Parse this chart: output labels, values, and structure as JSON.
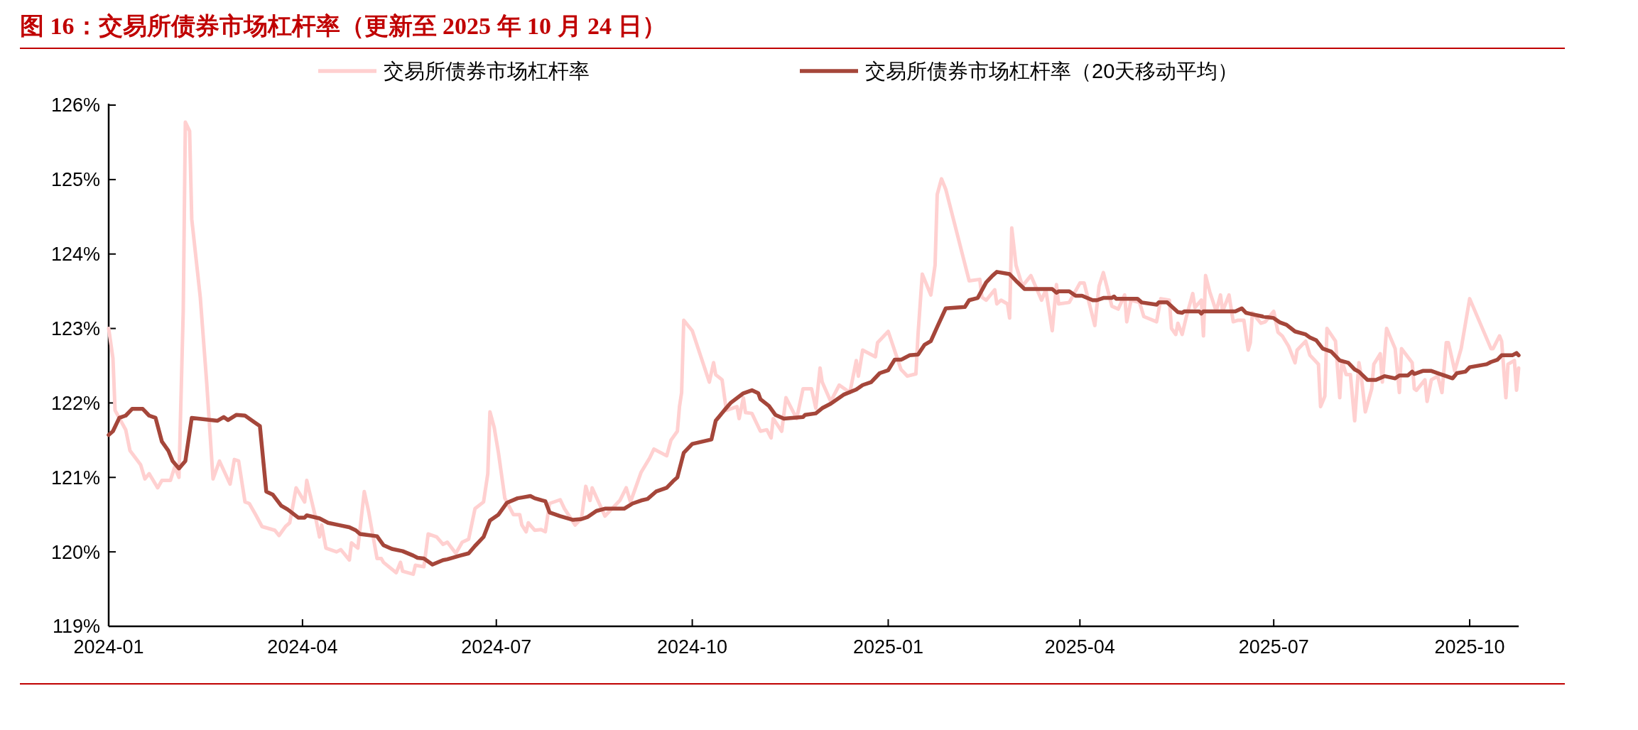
{
  "chart_data": {
    "type": "line",
    "title": "图 16：交易所债券市场杠杆率（更新至 2025 年 10 月 24 日）",
    "legend": "top",
    "grid": false,
    "line_style": "solid",
    "marker": "none",
    "xlim": [
      "2024-01-01",
      "2025-10-24"
    ],
    "xticks": [
      {
        "value": "2024-01-01",
        "label": "2024-01"
      },
      {
        "value": "2024-04-01",
        "label": "2024-04"
      },
      {
        "value": "2024-07-01",
        "label": "2024-07"
      },
      {
        "value": "2024-10-01",
        "label": "2024-10"
      },
      {
        "value": "2025-01-01",
        "label": "2025-01"
      },
      {
        "value": "2025-04-01",
        "label": "2025-04"
      },
      {
        "value": "2025-07-01",
        "label": "2025-07"
      },
      {
        "value": "2025-10-01",
        "label": "2025-10"
      }
    ],
    "ylim": [
      119,
      126
    ],
    "yticks": [
      {
        "value": 119,
        "label": "119%"
      },
      {
        "value": 120,
        "label": "120%"
      },
      {
        "value": 121,
        "label": "121%"
      },
      {
        "value": 122,
        "label": "122%"
      },
      {
        "value": 123,
        "label": "123%"
      },
      {
        "value": 124,
        "label": "124%"
      },
      {
        "value": 125,
        "label": "125%"
      },
      {
        "value": 126,
        "label": "126%"
      }
    ],
    "series": [
      {
        "name": "交易所债券市场杠杆率",
        "color": "#ffd0d0",
        "x": [
          "2024-01-01",
          "2024-01-03",
          "2024-01-04",
          "2024-01-09",
          "2024-01-11",
          "2024-01-16",
          "2024-01-18",
          "2024-01-20",
          "2024-01-24",
          "2024-01-26",
          "2024-01-30",
          "2024-02-01",
          "2024-02-03",
          "2024-02-05",
          "2024-02-06",
          "2024-02-08",
          "2024-02-09",
          "2024-02-13",
          "2024-02-16",
          "2024-02-19",
          "2024-02-22",
          "2024-02-27",
          "2024-02-29",
          "2024-03-02",
          "2024-03-05",
          "2024-03-07",
          "2024-03-10",
          "2024-03-13",
          "2024-03-19",
          "2024-03-21",
          "2024-03-24",
          "2024-03-26",
          "2024-03-29",
          "2024-04-02",
          "2024-04-03",
          "2024-04-07",
          "2024-04-09",
          "2024-04-10",
          "2024-04-12",
          "2024-04-17",
          "2024-04-19",
          "2024-04-23",
          "2024-04-24",
          "2024-04-27",
          "2024-04-30",
          "2024-05-02",
          "2024-05-06",
          "2024-05-08",
          "2024-05-09",
          "2024-05-15",
          "2024-05-17",
          "2024-05-18",
          "2024-05-23",
          "2024-05-24",
          "2024-05-28",
          "2024-05-30",
          "2024-06-03",
          "2024-06-06",
          "2024-06-08",
          "2024-06-12",
          "2024-06-15",
          "2024-06-18",
          "2024-06-21",
          "2024-06-25",
          "2024-06-27",
          "2024-06-28",
          "2024-06-30",
          "2024-07-02",
          "2024-07-05",
          "2024-07-09",
          "2024-07-12",
          "2024-07-13",
          "2024-07-15",
          "2024-07-16",
          "2024-07-19",
          "2024-07-22",
          "2024-07-24",
          "2024-07-26",
          "2024-07-31",
          "2024-08-02",
          "2024-08-07",
          "2024-08-10",
          "2024-08-12",
          "2024-08-14",
          "2024-08-15",
          "2024-08-21",
          "2024-08-28",
          "2024-08-31",
          "2024-09-02",
          "2024-09-07",
          "2024-09-11",
          "2024-09-13",
          "2024-09-19",
          "2024-09-21",
          "2024-09-24",
          "2024-09-25",
          "2024-09-26",
          "2024-09-27",
          "2024-10-01",
          "2024-10-09",
          "2024-10-11",
          "2024-10-12",
          "2024-10-15",
          "2024-10-17",
          "2024-10-22",
          "2024-10-23",
          "2024-10-25",
          "2024-10-26",
          "2024-10-29",
          "2024-11-02",
          "2024-11-05",
          "2024-11-07",
          "2024-11-08",
          "2024-11-12",
          "2024-11-14",
          "2024-11-19",
          "2024-11-22",
          "2024-11-26",
          "2024-11-28",
          "2024-11-30",
          "2024-12-01",
          "2024-12-05",
          "2024-12-09",
          "2024-12-14",
          "2024-12-17",
          "2024-12-18",
          "2024-12-20",
          "2024-12-26",
          "2024-12-27",
          "2025-01-01",
          "2025-01-07",
          "2025-01-10",
          "2025-01-14",
          "2025-01-15",
          "2025-01-17",
          "2025-01-21",
          "2025-01-23",
          "2025-01-24",
          "2025-01-26",
          "2025-01-28",
          "2025-02-08",
          "2025-02-13",
          "2025-02-14",
          "2025-02-16",
          "2025-02-20",
          "2025-02-21",
          "2025-02-23",
          "2025-02-26",
          "2025-02-27",
          "2025-02-28",
          "2025-03-02",
          "2025-03-05",
          "2025-03-09",
          "2025-03-14",
          "2025-03-16",
          "2025-03-19",
          "2025-03-21",
          "2025-03-22",
          "2025-03-27",
          "2025-04-01",
          "2025-04-03",
          "2025-04-08",
          "2025-04-10",
          "2025-04-12",
          "2025-04-16",
          "2025-04-19",
          "2025-04-22",
          "2025-04-23",
          "2025-04-25",
          "2025-04-29",
          "2025-05-01",
          "2025-05-07",
          "2025-05-09",
          "2025-05-13",
          "2025-05-14",
          "2025-05-16",
          "2025-05-17",
          "2025-05-19",
          "2025-05-21",
          "2025-05-24",
          "2025-05-25",
          "2025-05-28",
          "2025-05-29",
          "2025-05-30",
          "2025-06-01",
          "2025-06-04",
          "2025-06-06",
          "2025-06-07",
          "2025-06-10",
          "2025-06-12",
          "2025-06-14",
          "2025-06-17",
          "2025-06-19",
          "2025-06-20",
          "2025-06-21",
          "2025-06-25",
          "2025-06-27",
          "2025-07-01",
          "2025-07-03",
          "2025-07-05",
          "2025-07-08",
          "2025-07-11",
          "2025-07-12",
          "2025-07-16",
          "2025-07-18",
          "2025-07-22",
          "2025-07-23",
          "2025-07-25",
          "2025-07-26",
          "2025-07-30",
          "2025-08-01",
          "2025-08-02",
          "2025-08-04",
          "2025-08-06",
          "2025-08-08",
          "2025-08-10",
          "2025-08-11",
          "2025-08-13",
          "2025-08-16",
          "2025-08-17",
          "2025-08-20",
          "2025-08-21",
          "2025-08-23",
          "2025-08-27",
          "2025-08-29",
          "2025-08-30",
          "2025-09-04",
          "2025-09-05",
          "2025-09-06",
          "2025-09-10",
          "2025-09-11",
          "2025-09-13",
          "2025-09-16",
          "2025-09-18",
          "2025-09-20",
          "2025-09-21",
          "2025-09-24",
          "2025-09-27",
          "2025-10-01",
          "2025-10-11",
          "2025-10-12",
          "2025-10-15",
          "2025-10-16",
          "2025-10-18",
          "2025-10-19",
          "2025-10-22",
          "2025-10-23",
          "2025-10-24"
        ],
        "values": [
          123.0,
          122.6,
          121.9,
          121.64,
          121.36,
          121.17,
          120.98,
          121.05,
          120.86,
          120.96,
          120.96,
          121.14,
          121.0,
          123.23,
          125.77,
          125.65,
          124.47,
          123.42,
          122.28,
          120.98,
          121.22,
          120.91,
          121.24,
          121.22,
          120.67,
          120.65,
          120.5,
          120.34,
          120.29,
          120.22,
          120.34,
          120.39,
          120.86,
          120.67,
          120.96,
          120.48,
          120.2,
          120.36,
          120.05,
          120.0,
          120.03,
          119.89,
          120.12,
          120.05,
          120.81,
          120.55,
          119.91,
          119.91,
          119.86,
          119.72,
          119.86,
          119.74,
          119.7,
          119.82,
          119.8,
          120.24,
          120.2,
          120.1,
          120.13,
          119.98,
          120.13,
          120.17,
          120.58,
          120.67,
          121.05,
          121.88,
          121.67,
          121.33,
          120.72,
          120.5,
          120.5,
          120.36,
          120.27,
          120.39,
          120.29,
          120.3,
          120.27,
          120.65,
          120.7,
          120.58,
          120.36,
          120.45,
          120.88,
          120.69,
          120.86,
          120.48,
          120.69,
          120.86,
          120.67,
          121.07,
          121.26,
          121.38,
          121.29,
          121.5,
          121.62,
          121.95,
          122.14,
          123.11,
          122.97,
          122.28,
          122.54,
          122.38,
          122.31,
          121.9,
          121.95,
          121.79,
          122.07,
          121.87,
          121.86,
          121.62,
          121.64,
          121.53,
          121.79,
          121.62,
          122.07,
          121.79,
          122.19,
          122.19,
          121.93,
          122.47,
          122.28,
          122.02,
          122.24,
          122.14,
          122.57,
          122.36,
          122.71,
          122.62,
          122.81,
          122.96,
          122.45,
          122.36,
          122.39,
          122.92,
          123.73,
          123.45,
          123.85,
          124.8,
          125.01,
          124.87,
          123.64,
          123.66,
          123.42,
          123.38,
          123.52,
          123.33,
          123.38,
          123.33,
          123.14,
          124.35,
          123.85,
          123.57,
          123.71,
          123.38,
          123.52,
          122.97,
          123.59,
          123.33,
          123.35,
          123.61,
          123.61,
          123.04,
          123.57,
          123.75,
          123.3,
          123.26,
          123.45,
          123.09,
          123.38,
          123.35,
          123.16,
          123.09,
          123.4,
          123.38,
          123.0,
          122.92,
          123.07,
          122.92,
          123.16,
          123.47,
          123.28,
          123.38,
          122.9,
          123.71,
          123.49,
          123.23,
          123.45,
          123.23,
          123.45,
          123.09,
          123.11,
          123.11,
          122.71,
          122.81,
          123.21,
          123.07,
          123.09,
          123.23,
          122.95,
          122.9,
          122.76,
          122.54,
          122.71,
          122.83,
          122.64,
          122.52,
          121.95,
          122.09,
          123.0,
          122.83,
          122.07,
          122.57,
          122.38,
          122.38,
          121.76,
          122.54,
          122.38,
          121.88,
          122.19,
          122.52,
          122.66,
          122.28,
          123.0,
          122.73,
          122.14,
          122.73,
          122.54,
          122.19,
          122.17,
          122.31,
          122.02,
          122.31,
          122.36,
          122.14,
          122.81,
          122.81,
          122.43,
          122.73,
          123.4,
          122.73,
          122.73,
          122.9,
          122.83,
          122.07,
          122.52,
          122.57,
          122.17,
          122.47
        ]
      },
      {
        "name": "交易所债券市场杠杆率（20天移动平均）",
        "color": "#a5463a",
        "x": [
          "2024-01-01",
          "2024-01-03",
          "2024-01-06",
          "2024-01-09",
          "2024-01-12",
          "2024-01-17",
          "2024-01-20",
          "2024-01-23",
          "2024-01-26",
          "2024-01-29",
          "2024-01-31",
          "2024-02-03",
          "2024-02-06",
          "2024-02-09",
          "2024-02-21",
          "2024-02-24",
          "2024-02-26",
          "2024-03-01",
          "2024-03-05",
          "2024-03-09",
          "2024-03-12",
          "2024-03-15",
          "2024-03-18",
          "2024-03-22",
          "2024-03-25",
          "2024-03-30",
          "2024-04-02",
          "2024-04-03",
          "2024-04-09",
          "2024-04-13",
          "2024-04-18",
          "2024-04-23",
          "2024-04-26",
          "2024-04-28",
          "2024-05-06",
          "2024-05-09",
          "2024-05-13",
          "2024-05-18",
          "2024-05-23",
          "2024-05-25",
          "2024-05-28",
          "2024-06-01",
          "2024-06-06",
          "2024-06-08",
          "2024-06-14",
          "2024-06-18",
          "2024-06-21",
          "2024-06-25",
          "2024-06-28",
          "2024-07-02",
          "2024-07-06",
          "2024-07-11",
          "2024-07-13",
          "2024-07-17",
          "2024-07-19",
          "2024-07-24",
          "2024-07-26",
          "2024-07-31",
          "2024-08-06",
          "2024-08-10",
          "2024-08-13",
          "2024-08-17",
          "2024-08-21",
          "2024-08-30",
          "2024-09-03",
          "2024-09-07",
          "2024-09-10",
          "2024-09-14",
          "2024-09-19",
          "2024-09-22",
          "2024-09-24",
          "2024-09-27",
          "2024-10-01",
          "2024-10-10",
          "2024-10-12",
          "2024-10-16",
          "2024-10-19",
          "2024-10-25",
          "2024-10-29",
          "2024-11-01",
          "2024-11-02",
          "2024-11-06",
          "2024-11-09",
          "2024-11-13",
          "2024-11-22",
          "2024-11-23",
          "2024-11-28",
          "2024-12-01",
          "2024-12-05",
          "2024-12-11",
          "2024-12-17",
          "2024-12-20",
          "2024-12-24",
          "2024-12-28",
          "2025-01-01",
          "2025-01-04",
          "2025-01-07",
          "2025-01-11",
          "2025-01-15",
          "2025-01-18",
          "2025-01-21",
          "2025-01-24",
          "2025-01-28",
          "2025-02-06",
          "2025-02-08",
          "2025-02-12",
          "2025-02-16",
          "2025-02-19",
          "2025-02-21",
          "2025-02-27",
          "2025-03-02",
          "2025-03-06",
          "2025-03-19",
          "2025-03-21",
          "2025-03-22",
          "2025-03-27",
          "2025-03-30",
          "2025-04-02",
          "2025-04-07",
          "2025-04-09",
          "2025-04-12",
          "2025-04-16",
          "2025-04-17",
          "2025-04-18",
          "2025-04-28",
          "2025-04-30",
          "2025-05-07",
          "2025-05-08",
          "2025-05-12",
          "2025-05-17",
          "2025-05-19",
          "2025-05-20",
          "2025-05-27",
          "2025-05-28",
          "2025-05-29",
          "2025-06-13",
          "2025-06-16",
          "2025-06-18",
          "2025-06-21",
          "2025-06-26",
          "2025-07-01",
          "2025-07-04",
          "2025-07-07",
          "2025-07-11",
          "2025-07-16",
          "2025-07-18",
          "2025-07-21",
          "2025-07-24",
          "2025-07-28",
          "2025-08-01",
          "2025-08-05",
          "2025-08-08",
          "2025-08-10",
          "2025-08-14",
          "2025-08-18",
          "2025-08-22",
          "2025-08-27",
          "2025-08-29",
          "2025-09-02",
          "2025-09-04",
          "2025-09-05",
          "2025-09-09",
          "2025-09-13",
          "2025-09-17",
          "2025-09-23",
          "2025-09-25",
          "2025-09-29",
          "2025-10-01",
          "2025-10-09",
          "2025-10-11",
          "2025-10-14",
          "2025-10-16",
          "2025-10-21",
          "2025-10-23",
          "2025-10-24"
        ],
        "values": [
          121.57,
          121.62,
          121.8,
          121.83,
          121.92,
          121.92,
          121.83,
          121.8,
          121.48,
          121.36,
          121.22,
          121.12,
          121.22,
          121.8,
          121.76,
          121.81,
          121.77,
          121.84,
          121.83,
          121.75,
          121.69,
          120.81,
          120.77,
          120.62,
          120.57,
          120.46,
          120.46,
          120.49,
          120.45,
          120.39,
          120.36,
          120.33,
          120.29,
          120.24,
          120.21,
          120.09,
          120.04,
          120.01,
          119.95,
          119.92,
          119.91,
          119.83,
          119.89,
          119.9,
          119.95,
          119.98,
          120.08,
          120.2,
          120.42,
          120.5,
          120.66,
          120.72,
          120.73,
          120.75,
          120.72,
          120.68,
          120.53,
          120.48,
          120.43,
          120.44,
          120.47,
          120.55,
          120.58,
          120.58,
          120.65,
          120.69,
          120.71,
          120.81,
          120.86,
          120.95,
          121.0,
          121.33,
          121.45,
          121.51,
          121.76,
          121.9,
          122.0,
          122.13,
          122.17,
          122.13,
          122.05,
          121.96,
          121.84,
          121.79,
          121.81,
          121.84,
          121.86,
          121.93,
          121.99,
          122.11,
          122.18,
          122.24,
          122.28,
          122.4,
          122.44,
          122.58,
          122.58,
          122.64,
          122.65,
          122.78,
          122.83,
          123.02,
          123.27,
          123.29,
          123.38,
          123.41,
          123.62,
          123.71,
          123.76,
          123.73,
          123.64,
          123.53,
          123.53,
          123.48,
          123.5,
          123.5,
          123.44,
          123.44,
          123.38,
          123.38,
          123.41,
          123.41,
          123.43,
          123.4,
          123.4,
          123.35,
          123.32,
          123.35,
          123.35,
          123.22,
          123.21,
          123.23,
          123.23,
          123.2,
          123.23,
          123.23,
          123.27,
          123.21,
          123.19,
          123.16,
          123.14,
          123.08,
          123.05,
          122.96,
          122.92,
          122.88,
          122.84,
          122.73,
          122.69,
          122.57,
          122.54,
          122.45,
          122.42,
          122.31,
          122.31,
          122.36,
          122.33,
          122.37,
          122.37,
          122.42,
          122.39,
          122.43,
          122.43,
          122.39,
          122.33,
          122.4,
          122.42,
          122.48,
          122.52,
          122.55,
          122.58,
          122.64,
          122.64,
          122.67,
          122.64
        ]
      }
    ]
  }
}
